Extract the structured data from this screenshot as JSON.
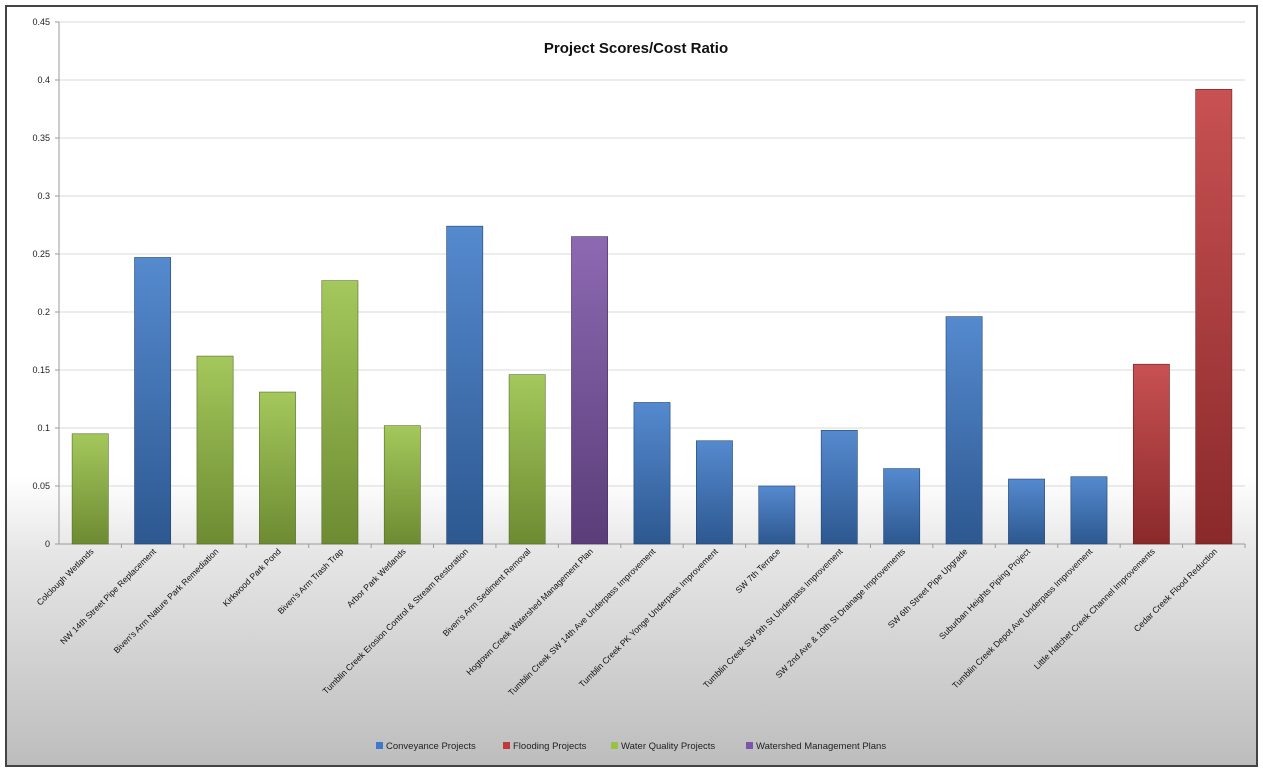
{
  "chart_data": {
    "type": "bar",
    "title": "Project Scores/Cost Ratio",
    "xlabel": "",
    "ylabel": "",
    "ylim": [
      0,
      0.45
    ],
    "yticks": [
      0,
      0.05,
      0.1,
      0.15,
      0.2,
      0.25,
      0.3,
      0.35,
      0.4,
      0.45
    ],
    "ytick_labels": [
      "0",
      "0.05",
      "0.1",
      "0.15",
      "0.2",
      "0.25",
      "0.3",
      "0.35",
      "0.4",
      "0.45"
    ],
    "grid": true,
    "legend_position": "bottom",
    "categories": [
      "Colclough Wetlands",
      "NW 14th Street Pipe Replacement",
      "Biven's Arm Nature Park Remediation",
      "Kirkwood Park Pond",
      "Biven's Arm Trash Trap",
      "Arbor Park Wetlands",
      "Tumblin Creek Erosion Control & Stream Restoration",
      "Biven's Arm Sediment Removal",
      "Hogtown Creek Watershed Management Plan",
      "Tumblin Creek SW 14th Ave Underpass Improvement",
      "Tumblin Creek PK Yonge Underpass Improvement",
      "SW 7th Terrace",
      "Tumblin Creek SW 9th St Underpass Improvement",
      "SW 2nd Ave & 10th St Drainage Improvements",
      "SW 6th Street Pipe Upgrade",
      "Suburban Heights Piping Project",
      "Tumblin Creek Depot Ave Underpass Improvement",
      "Little Hatchet Creek Channel Improvements",
      "Cedar Creek Flood Reduction"
    ],
    "values": [
      0.095,
      0.247,
      0.162,
      0.131,
      0.227,
      0.102,
      0.274,
      0.146,
      0.265,
      0.122,
      0.089,
      0.05,
      0.098,
      0.065,
      0.196,
      0.056,
      0.058,
      0.155,
      0.392
    ],
    "bar_groups": [
      "Water Quality Projects",
      "Conveyance Projects",
      "Water Quality Projects",
      "Water Quality Projects",
      "Water Quality Projects",
      "Water Quality Projects",
      "Conveyance Projects",
      "Water Quality Projects",
      "Watershed Management Plans",
      "Conveyance Projects",
      "Conveyance Projects",
      "Conveyance Projects",
      "Conveyance Projects",
      "Conveyance Projects",
      "Conveyance Projects",
      "Conveyance Projects",
      "Conveyance Projects",
      "Flooding Projects",
      "Flooding Projects"
    ],
    "legend": [
      {
        "name": "Conveyance Projects",
        "color": "#3e7ac8"
      },
      {
        "name": "Flooding Projects",
        "color": "#c0393b"
      },
      {
        "name": "Water Quality Projects",
        "color": "#98c146"
      },
      {
        "name": "Watershed Management Plans",
        "color": "#7d55a8"
      }
    ],
    "colors": {
      "background_bottom": "#bdbdbd",
      "gridline": "#d9d9d9",
      "axis": "#9a9a9a"
    }
  }
}
